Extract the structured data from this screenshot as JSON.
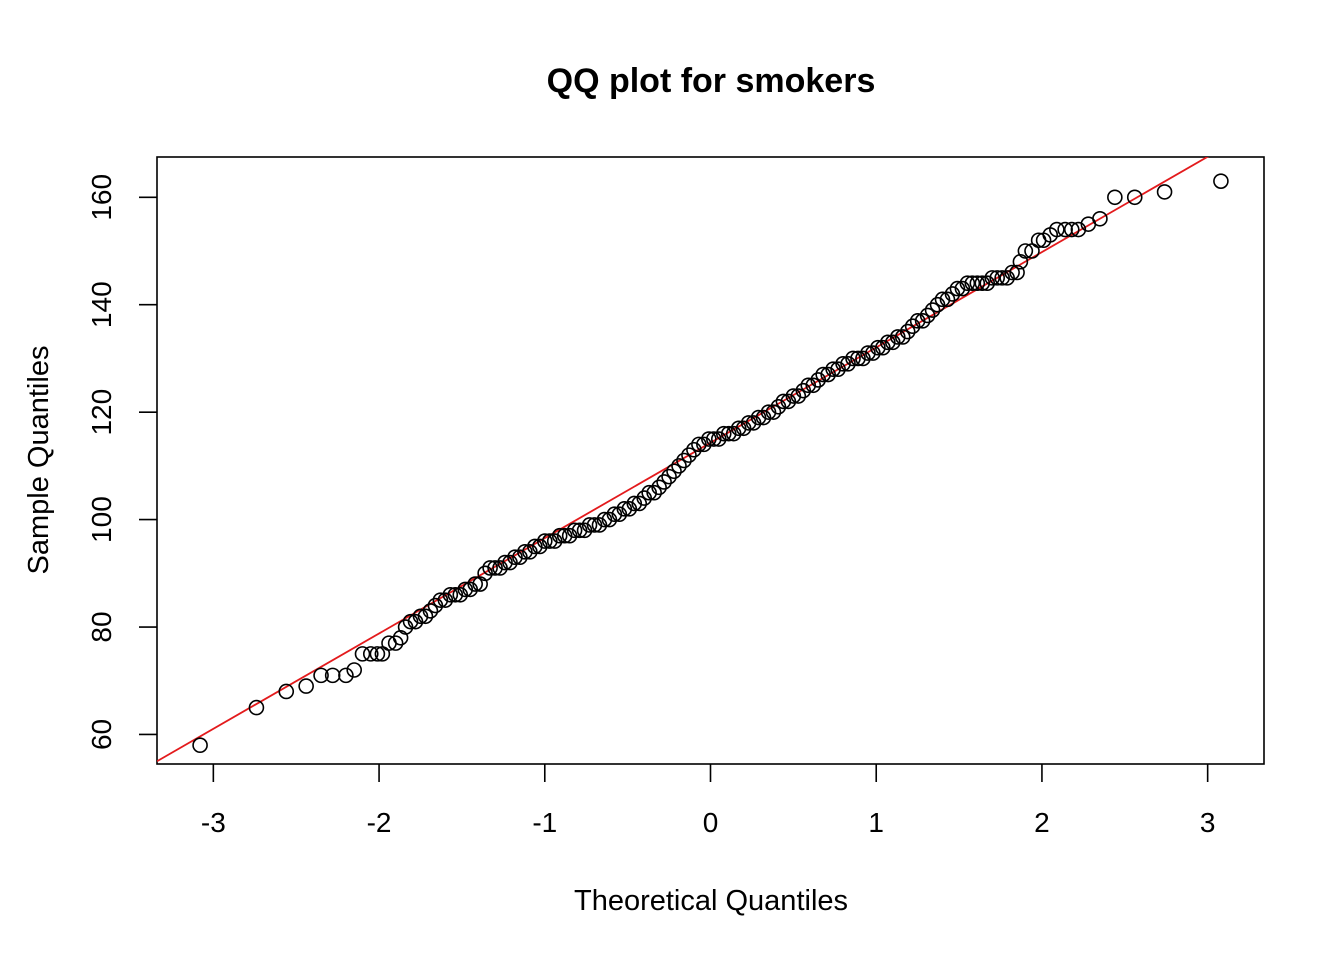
{
  "chart_data": {
    "type": "scatter",
    "title": "QQ plot for smokers",
    "xlabel": "Theoretical Quantiles",
    "ylabel": "Sample Quantiles",
    "xlim": [
      -3.34,
      3.34
    ],
    "ylim": [
      54.5,
      167.5
    ],
    "x_ticks": [
      -3,
      -2,
      -1,
      0,
      1,
      2,
      3
    ],
    "x_tick_labels": [
      "-3",
      "-2",
      "-1",
      "0",
      "1",
      "2",
      "3"
    ],
    "y_ticks": [
      60,
      80,
      100,
      120,
      140,
      160
    ],
    "y_tick_labels": [
      "60",
      "80",
      "100",
      "120",
      "140",
      "160"
    ],
    "grid": false,
    "reference_line": {
      "slope": 17.75,
      "intercept": 114.3,
      "color": "#e31a1c"
    },
    "point_color": "#000000",
    "series": [
      {
        "values": [
          {
            "x": -3.08,
            "y": 58
          },
          {
            "x": -2.74,
            "y": 65
          },
          {
            "x": -2.56,
            "y": 68
          },
          {
            "x": -2.44,
            "y": 69
          },
          {
            "x": -2.35,
            "y": 71
          },
          {
            "x": -2.28,
            "y": 71
          },
          {
            "x": -2.2,
            "y": 71
          },
          {
            "x": -2.15,
            "y": 72
          },
          {
            "x": -2.1,
            "y": 75
          },
          {
            "x": -2.05,
            "y": 75
          },
          {
            "x": -2.01,
            "y": 75
          },
          {
            "x": -1.98,
            "y": 75
          },
          {
            "x": -1.94,
            "y": 77
          },
          {
            "x": -1.9,
            "y": 77
          },
          {
            "x": -1.87,
            "y": 78
          },
          {
            "x": -1.84,
            "y": 80
          },
          {
            "x": -1.81,
            "y": 81
          },
          {
            "x": -1.78,
            "y": 81
          },
          {
            "x": -1.75,
            "y": 82
          },
          {
            "x": -1.72,
            "y": 82
          },
          {
            "x": -1.69,
            "y": 83
          },
          {
            "x": -1.66,
            "y": 84
          },
          {
            "x": -1.63,
            "y": 85
          },
          {
            "x": -1.6,
            "y": 85
          },
          {
            "x": -1.57,
            "y": 86
          },
          {
            "x": -1.54,
            "y": 86
          },
          {
            "x": -1.51,
            "y": 86
          },
          {
            "x": -1.48,
            "y": 87
          },
          {
            "x": -1.45,
            "y": 87
          },
          {
            "x": -1.42,
            "y": 88
          },
          {
            "x": -1.39,
            "y": 88
          },
          {
            "x": -1.36,
            "y": 90
          },
          {
            "x": -1.33,
            "y": 91
          },
          {
            "x": -1.3,
            "y": 91
          },
          {
            "x": -1.27,
            "y": 91
          },
          {
            "x": -1.24,
            "y": 92
          },
          {
            "x": -1.21,
            "y": 92
          },
          {
            "x": -1.18,
            "y": 93
          },
          {
            "x": -1.15,
            "y": 93
          },
          {
            "x": -1.12,
            "y": 94
          },
          {
            "x": -1.09,
            "y": 94
          },
          {
            "x": -1.06,
            "y": 95
          },
          {
            "x": -1.03,
            "y": 95
          },
          {
            "x": -1.0,
            "y": 96
          },
          {
            "x": -0.97,
            "y": 96
          },
          {
            "x": -0.94,
            "y": 96
          },
          {
            "x": -0.91,
            "y": 97
          },
          {
            "x": -0.88,
            "y": 97
          },
          {
            "x": -0.85,
            "y": 97
          },
          {
            "x": -0.82,
            "y": 98
          },
          {
            "x": -0.79,
            "y": 98
          },
          {
            "x": -0.76,
            "y": 98
          },
          {
            "x": -0.73,
            "y": 99
          },
          {
            "x": -0.7,
            "y": 99
          },
          {
            "x": -0.67,
            "y": 99
          },
          {
            "x": -0.64,
            "y": 100
          },
          {
            "x": -0.61,
            "y": 100
          },
          {
            "x": -0.58,
            "y": 101
          },
          {
            "x": -0.55,
            "y": 101
          },
          {
            "x": -0.52,
            "y": 102
          },
          {
            "x": -0.49,
            "y": 102
          },
          {
            "x": -0.46,
            "y": 103
          },
          {
            "x": -0.43,
            "y": 103
          },
          {
            "x": -0.4,
            "y": 104
          },
          {
            "x": -0.37,
            "y": 105
          },
          {
            "x": -0.34,
            "y": 105
          },
          {
            "x": -0.31,
            "y": 106
          },
          {
            "x": -0.28,
            "y": 107
          },
          {
            "x": -0.25,
            "y": 108
          },
          {
            "x": -0.22,
            "y": 109
          },
          {
            "x": -0.19,
            "y": 110
          },
          {
            "x": -0.16,
            "y": 111
          },
          {
            "x": -0.13,
            "y": 112
          },
          {
            "x": -0.1,
            "y": 113
          },
          {
            "x": -0.07,
            "y": 114
          },
          {
            "x": -0.04,
            "y": 114
          },
          {
            "x": -0.01,
            "y": 115
          },
          {
            "x": 0.02,
            "y": 115
          },
          {
            "x": 0.05,
            "y": 115
          },
          {
            "x": 0.08,
            "y": 116
          },
          {
            "x": 0.11,
            "y": 116
          },
          {
            "x": 0.14,
            "y": 116
          },
          {
            "x": 0.17,
            "y": 117
          },
          {
            "x": 0.2,
            "y": 117
          },
          {
            "x": 0.23,
            "y": 118
          },
          {
            "x": 0.26,
            "y": 118
          },
          {
            "x": 0.29,
            "y": 119
          },
          {
            "x": 0.32,
            "y": 119
          },
          {
            "x": 0.35,
            "y": 120
          },
          {
            "x": 0.38,
            "y": 120
          },
          {
            "x": 0.41,
            "y": 121
          },
          {
            "x": 0.44,
            "y": 122
          },
          {
            "x": 0.47,
            "y": 122
          },
          {
            "x": 0.5,
            "y": 123
          },
          {
            "x": 0.53,
            "y": 123
          },
          {
            "x": 0.56,
            "y": 124
          },
          {
            "x": 0.59,
            "y": 125
          },
          {
            "x": 0.62,
            "y": 125
          },
          {
            "x": 0.65,
            "y": 126
          },
          {
            "x": 0.68,
            "y": 127
          },
          {
            "x": 0.71,
            "y": 127
          },
          {
            "x": 0.74,
            "y": 128
          },
          {
            "x": 0.77,
            "y": 128
          },
          {
            "x": 0.8,
            "y": 129
          },
          {
            "x": 0.83,
            "y": 129
          },
          {
            "x": 0.86,
            "y": 130
          },
          {
            "x": 0.89,
            "y": 130
          },
          {
            "x": 0.92,
            "y": 130
          },
          {
            "x": 0.95,
            "y": 131
          },
          {
            "x": 0.98,
            "y": 131
          },
          {
            "x": 1.01,
            "y": 132
          },
          {
            "x": 1.04,
            "y": 132
          },
          {
            "x": 1.07,
            "y": 133
          },
          {
            "x": 1.1,
            "y": 133
          },
          {
            "x": 1.13,
            "y": 134
          },
          {
            "x": 1.16,
            "y": 134
          },
          {
            "x": 1.19,
            "y": 135
          },
          {
            "x": 1.22,
            "y": 136
          },
          {
            "x": 1.25,
            "y": 137
          },
          {
            "x": 1.28,
            "y": 137
          },
          {
            "x": 1.31,
            "y": 138
          },
          {
            "x": 1.34,
            "y": 139
          },
          {
            "x": 1.37,
            "y": 140
          },
          {
            "x": 1.4,
            "y": 141
          },
          {
            "x": 1.43,
            "y": 141
          },
          {
            "x": 1.46,
            "y": 142
          },
          {
            "x": 1.49,
            "y": 143
          },
          {
            "x": 1.52,
            "y": 143
          },
          {
            "x": 1.55,
            "y": 144
          },
          {
            "x": 1.58,
            "y": 144
          },
          {
            "x": 1.61,
            "y": 144
          },
          {
            "x": 1.64,
            "y": 144
          },
          {
            "x": 1.67,
            "y": 144
          },
          {
            "x": 1.7,
            "y": 145
          },
          {
            "x": 1.73,
            "y": 145
          },
          {
            "x": 1.76,
            "y": 145
          },
          {
            "x": 1.79,
            "y": 145
          },
          {
            "x": 1.82,
            "y": 146
          },
          {
            "x": 1.85,
            "y": 146
          },
          {
            "x": 1.87,
            "y": 148
          },
          {
            "x": 1.9,
            "y": 150
          },
          {
            "x": 1.94,
            "y": 150
          },
          {
            "x": 1.98,
            "y": 152
          },
          {
            "x": 2.01,
            "y": 152
          },
          {
            "x": 2.05,
            "y": 153
          },
          {
            "x": 2.09,
            "y": 154
          },
          {
            "x": 2.14,
            "y": 154
          },
          {
            "x": 2.18,
            "y": 154
          },
          {
            "x": 2.22,
            "y": 154
          },
          {
            "x": 2.28,
            "y": 155
          },
          {
            "x": 2.35,
            "y": 156
          },
          {
            "x": 2.44,
            "y": 160
          },
          {
            "x": 2.56,
            "y": 160
          },
          {
            "x": 2.74,
            "y": 161
          },
          {
            "x": 3.08,
            "y": 163
          }
        ]
      }
    ]
  }
}
